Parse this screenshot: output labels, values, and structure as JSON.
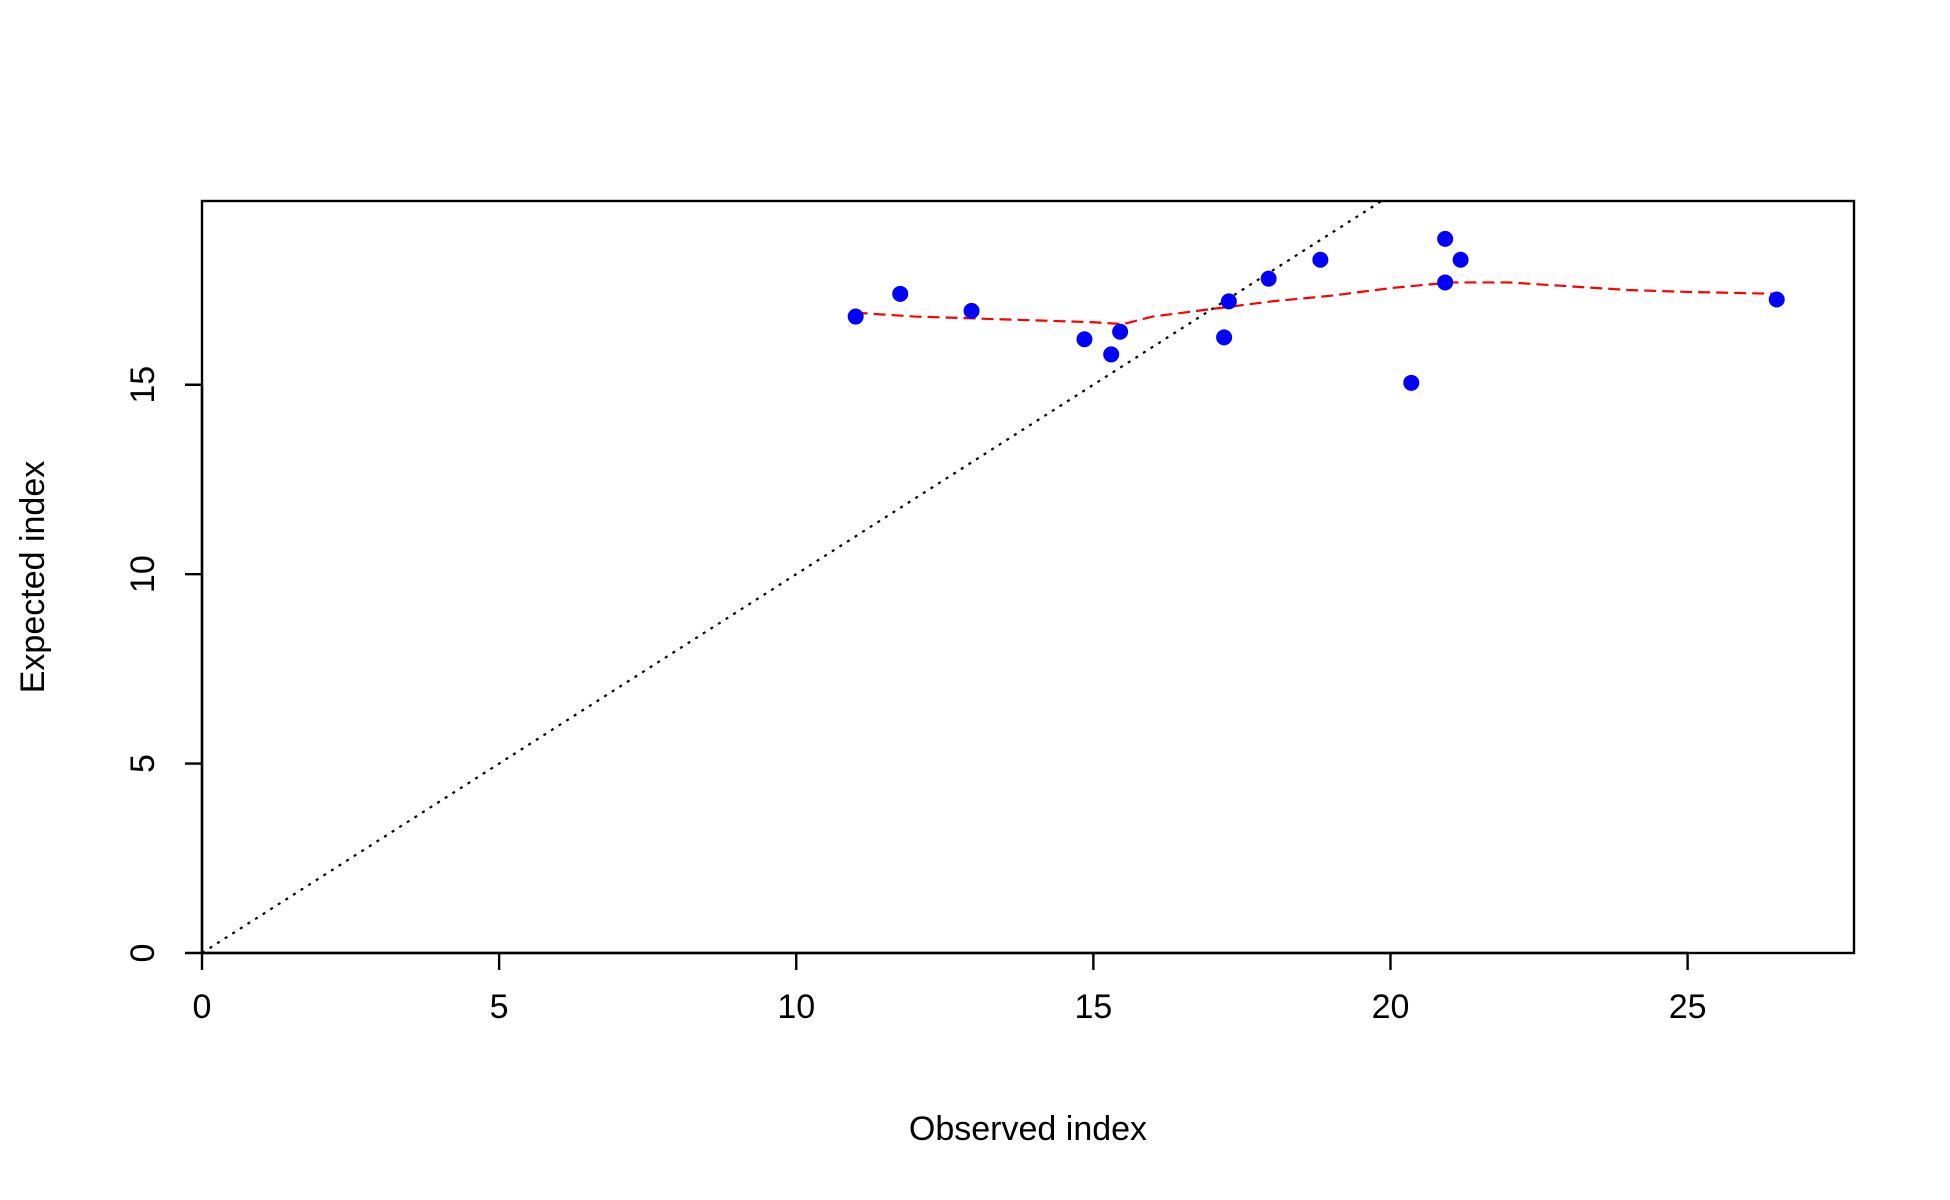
{
  "chart_data": {
    "type": "scatter",
    "title": "",
    "xlabel": "Observed index",
    "ylabel": "Expected index",
    "xlim": [
      0,
      27.8
    ],
    "ylim": [
      0,
      19.85
    ],
    "x_ticks": [
      0,
      5,
      10,
      15,
      20,
      25
    ],
    "y_ticks": [
      0,
      5,
      10,
      15
    ],
    "grid": false,
    "series": [
      {
        "kind": "points",
        "color": "#0000ff",
        "x": [
          11.0,
          11.75,
          12.95,
          14.85,
          15.3,
          15.45,
          17.2,
          17.28,
          17.95,
          18.82,
          20.35,
          20.92,
          20.92,
          21.18,
          26.5
        ],
        "y": [
          16.8,
          17.4,
          16.95,
          16.2,
          15.8,
          16.4,
          16.25,
          17.2,
          17.8,
          18.3,
          15.05,
          18.85,
          17.7,
          18.3,
          17.25
        ]
      },
      {
        "kind": "smooth",
        "color": "#ff0000",
        "style": "dashed",
        "x": [
          11.0,
          12.0,
          13.0,
          14.0,
          15.0,
          15.5,
          16.0,
          17.0,
          18.0,
          19.0,
          20.0,
          21.0,
          22.0,
          23.0,
          24.0,
          25.0,
          26.5
        ],
        "y": [
          16.9,
          16.8,
          16.75,
          16.7,
          16.65,
          16.6,
          16.8,
          17.0,
          17.2,
          17.35,
          17.55,
          17.7,
          17.7,
          17.6,
          17.5,
          17.45,
          17.4
        ]
      },
      {
        "kind": "reference",
        "color": "#000000",
        "style": "dotted",
        "x": [
          0,
          19.85
        ],
        "y": [
          0,
          19.85
        ]
      }
    ]
  }
}
